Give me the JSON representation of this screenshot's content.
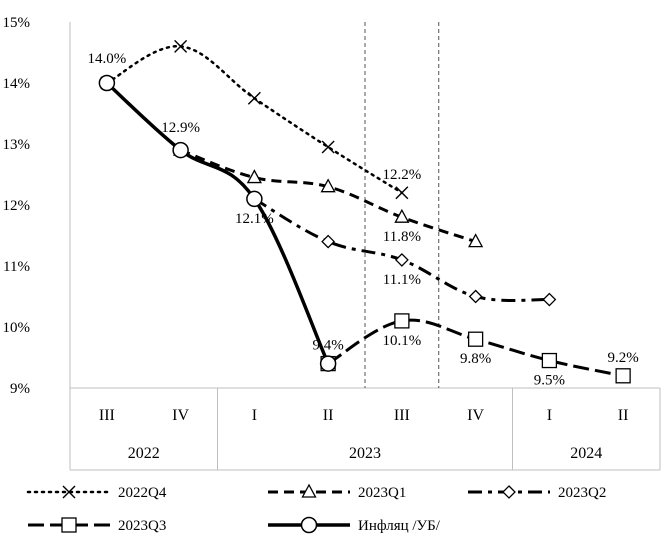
{
  "chart_data": {
    "type": "line",
    "title": "",
    "xlabel": "",
    "ylabel": "",
    "ylim": [
      0.09,
      0.15
    ],
    "y_ticks": [
      "9%",
      "10%",
      "11%",
      "12%",
      "13%",
      "14%",
      "15%"
    ],
    "quarters": [
      "III",
      "IV",
      "I",
      "II",
      "III",
      "IV",
      "I",
      "II"
    ],
    "years": [
      {
        "label": "2022",
        "span": 2
      },
      {
        "label": "2023",
        "span": 4
      },
      {
        "label": "2024",
        "span": 2
      }
    ],
    "vlines_after_index": [
      3,
      4
    ],
    "legend_position": "bottom",
    "grid": false,
    "series": [
      {
        "name": "2022Q4",
        "style": "dotted",
        "marker": "x",
        "values": [
          0.14,
          0.146,
          0.1375,
          0.1295,
          0.122,
          null,
          null,
          null
        ]
      },
      {
        "name": "2023Q1",
        "style": "dashed",
        "marker": "triangle",
        "values": [
          null,
          0.129,
          0.1245,
          0.123,
          0.118,
          0.114,
          null,
          null
        ]
      },
      {
        "name": "2023Q2",
        "style": "dashdot",
        "marker": "diamond",
        "values": [
          null,
          null,
          0.121,
          0.114,
          0.111,
          0.105,
          0.1045,
          null
        ]
      },
      {
        "name": "2023Q3",
        "style": "longdash",
        "marker": "square",
        "values": [
          null,
          null,
          null,
          0.094,
          0.101,
          0.098,
          0.0945,
          0.092
        ]
      },
      {
        "name": "Инфляц /УБ/",
        "style": "solid",
        "marker": "circle",
        "values": [
          0.14,
          0.129,
          0.121,
          0.094,
          null,
          null,
          null,
          null
        ]
      }
    ],
    "data_labels": [
      {
        "text": "14.0%",
        "x": 0,
        "y": 0.14
      },
      {
        "text": "12.9%",
        "x": 1,
        "y": 0.129
      },
      {
        "text": "12.1%",
        "x": 2,
        "y": 0.121
      },
      {
        "text": "9.4%",
        "x": 3,
        "y": 0.094
      },
      {
        "text": "12.2%",
        "x": 4,
        "y": 0.122
      },
      {
        "text": "11.8%",
        "x": 4,
        "y": 0.118
      },
      {
        "text": "11.1%",
        "x": 4,
        "y": 0.111
      },
      {
        "text": "10.1%",
        "x": 4,
        "y": 0.101
      },
      {
        "text": "9.8%",
        "x": 5,
        "y": 0.098
      },
      {
        "text": "9.5%",
        "x": 6,
        "y": 0.0945
      },
      {
        "text": "9.2%",
        "x": 7,
        "y": 0.092
      }
    ]
  }
}
